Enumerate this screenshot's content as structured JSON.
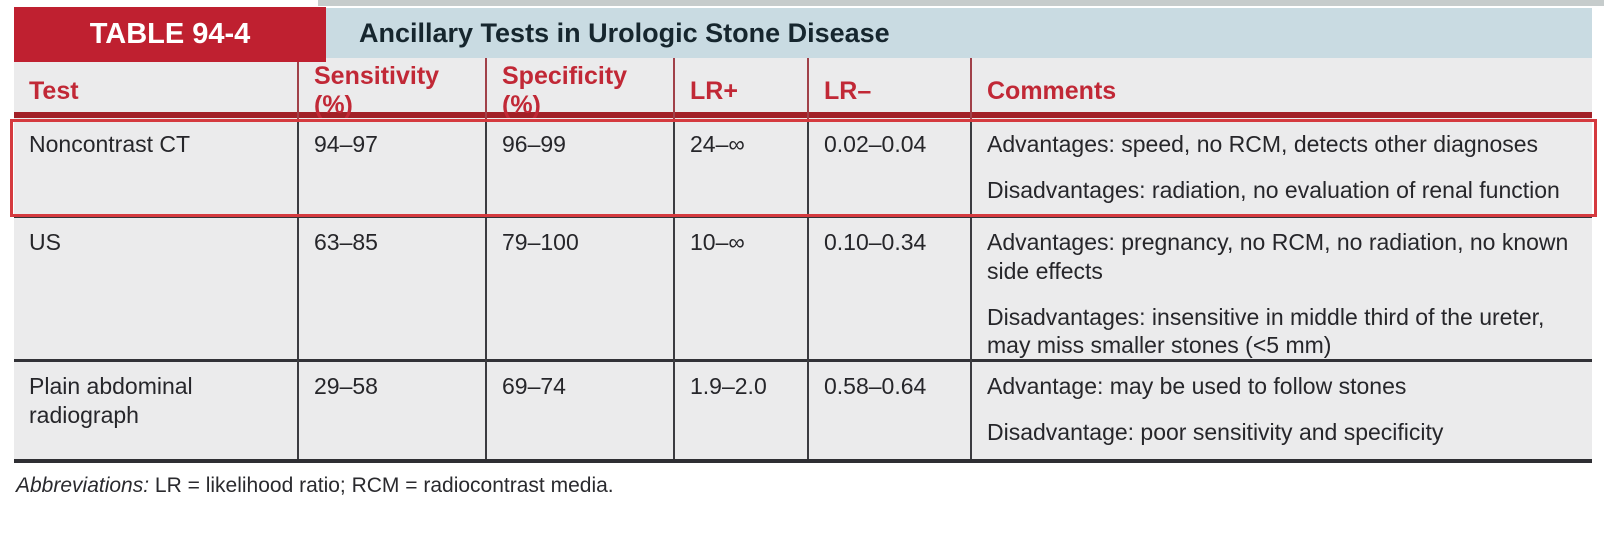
{
  "table": {
    "label": "TABLE 94-4",
    "title": "Ancillary Tests in Urologic Stone Disease",
    "columns": [
      "Test",
      "Sensitivity (%)",
      "Specificity (%)",
      "LR+",
      "LR–",
      "Comments"
    ],
    "rows": [
      {
        "test": "Noncontrast CT",
        "sensitivity": "94–97",
        "specificity": "96–99",
        "lr_plus": "24–∞",
        "lr_minus": "0.02–0.04",
        "comment_lines": [
          "Advantages: speed, no RCM, detects other diagnoses",
          "Disadvantages: radiation, no evaluation of renal function"
        ],
        "highlighted": "true"
      },
      {
        "test": "US",
        "sensitivity": "63–85",
        "specificity": "79–100",
        "lr_plus": "10–∞",
        "lr_minus": "0.10–0.34",
        "comment_lines": [
          "Advantages: pregnancy, no RCM, no radiation, no known side effects",
          "Disadvantages: insensitive in middle third of the ureter, may miss smaller stones (<5 mm)"
        ],
        "highlighted": "false"
      },
      {
        "test": "Plain abdominal radiograph",
        "sensitivity": "29–58",
        "specificity": "69–74",
        "lr_plus": "1.9–2.0",
        "lr_minus": "0.58–0.64",
        "comment_lines": [
          "Advantage: may be used to follow stones",
          "Disadvantage: poor sensitivity and specificity"
        ],
        "highlighted": "false"
      }
    ],
    "footnote_lead": "Abbreviations:",
    "footnote_text": " LR = likelihood ratio; RCM = radiocontrast media.",
    "colors": {
      "accent_red": "#bf2030",
      "band_blue": "#c9dbe2",
      "body_bg": "#ebebec",
      "highlight_red": "#d53a3f",
      "rule_dark_red": "#a22027",
      "grid_dark": "#3b3b40"
    }
  }
}
